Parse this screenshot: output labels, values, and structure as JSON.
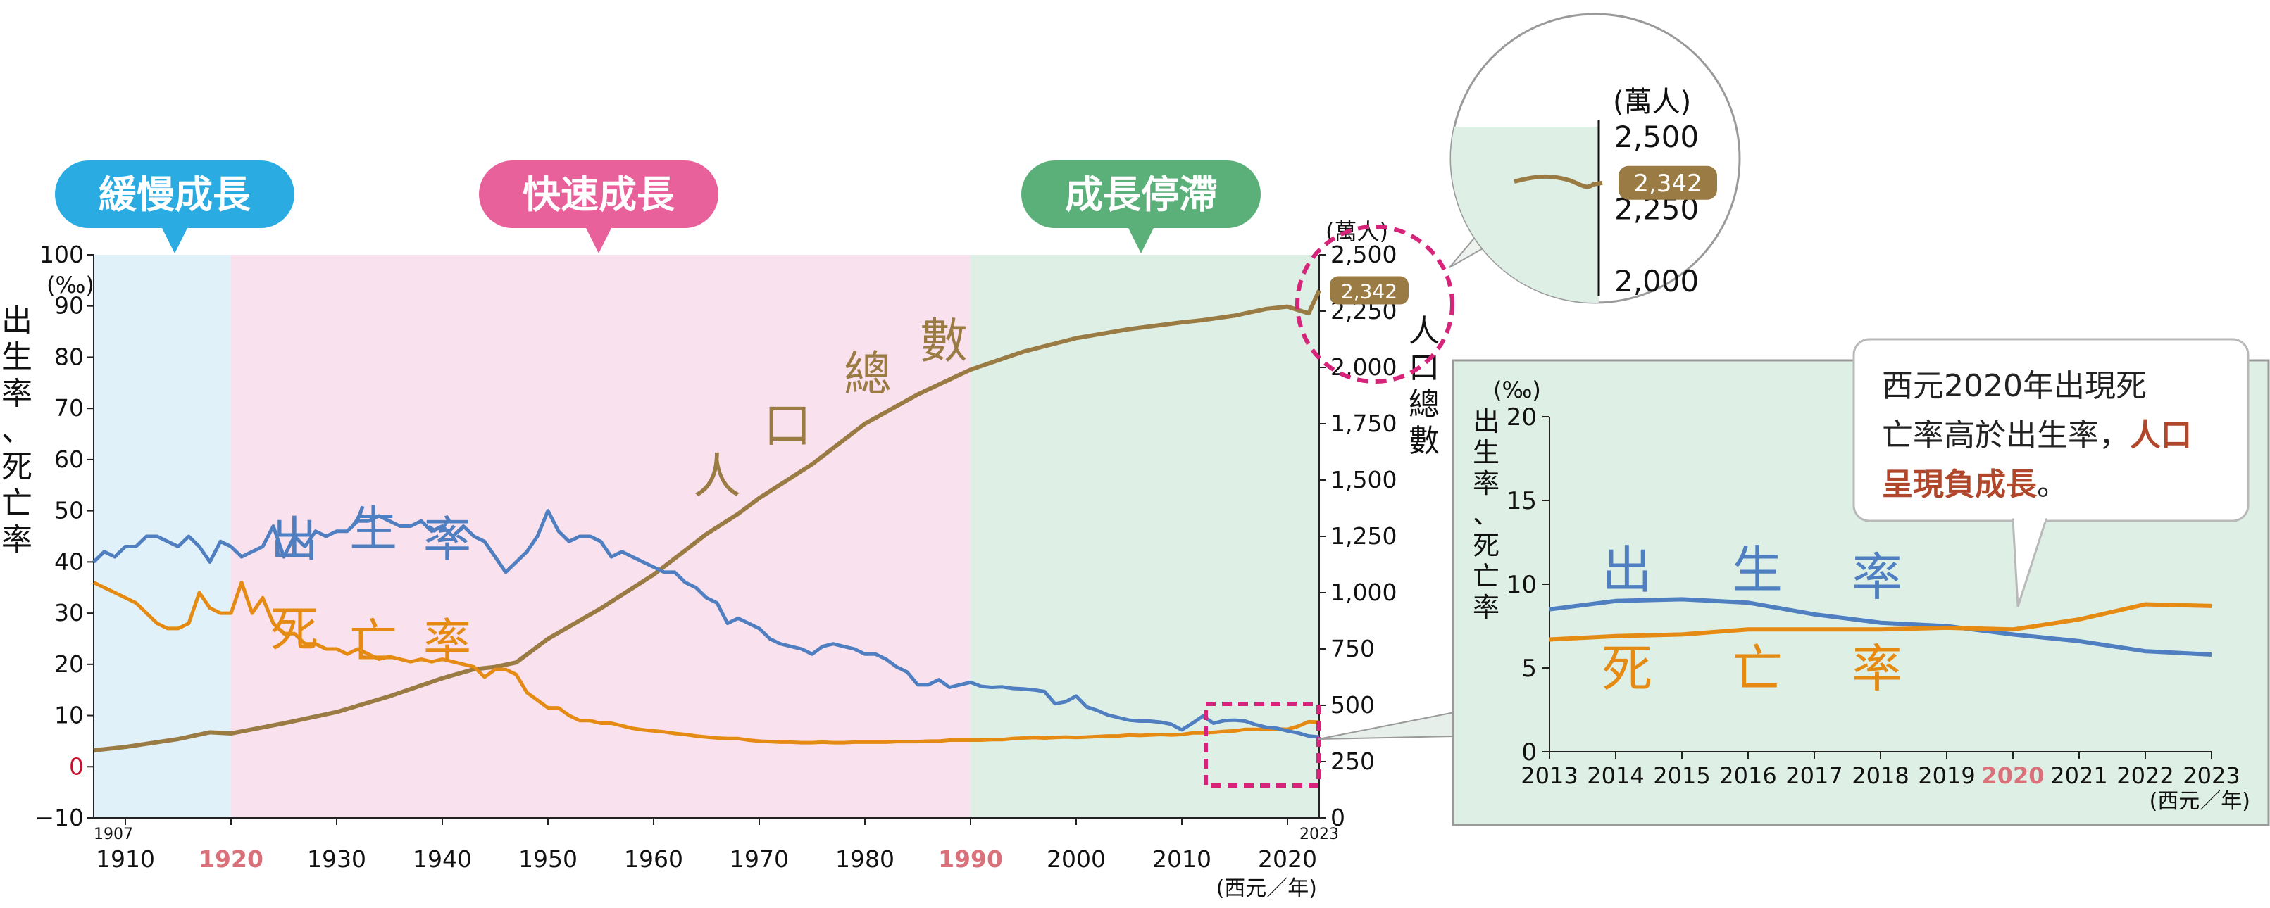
{
  "chart_data": [
    {
      "type": "line",
      "x_unit": "(西元／年)",
      "left_axis": {
        "unit": "(‰)",
        "label": "出生率、死亡率",
        "ticks": [
          -10,
          0,
          10,
          20,
          30,
          40,
          50,
          60,
          70,
          80,
          90,
          100
        ],
        "ylim": [
          -10,
          100
        ]
      },
      "right_axis": {
        "unit": "(萬人)",
        "label": "人口總數",
        "ticks": [
          "0",
          "250",
          "500",
          "750",
          "1,000",
          "1,250",
          "1,500",
          "1,750",
          "2,000",
          "2,250",
          "2,500"
        ],
        "ylim": [
          0,
          2500
        ]
      },
      "x_ticks": [
        "1910",
        "1920",
        "1930",
        "1940",
        "1950",
        "1960",
        "1970",
        "1980",
        "1990",
        "2000",
        "2010",
        "2020"
      ],
      "x_start_label": "1907",
      "x_end_label": "2023",
      "xlim": [
        1907,
        2023
      ],
      "phases": [
        {
          "label": "緩慢成長",
          "from": 1907,
          "to": 1920,
          "band": "#e1f1fa",
          "badge": "#2aace2"
        },
        {
          "label": "快速成長",
          "from": 1920,
          "to": 1990,
          "band": "#f9e1ee",
          "badge": "#e8619b"
        },
        {
          "label": "成長停滯",
          "from": 1990,
          "to": 2023,
          "band": "#deefe6",
          "badge": "#5bb07a"
        }
      ],
      "series": [
        {
          "name": "出生率",
          "color": "#4f7fc0",
          "label_chars": [
            "出",
            "生",
            "率"
          ],
          "x": [
            1907,
            1908,
            1909,
            1910,
            1911,
            1912,
            1913,
            1914,
            1915,
            1916,
            1917,
            1918,
            1919,
            1920,
            1921,
            1922,
            1923,
            1924,
            1925,
            1926,
            1927,
            1928,
            1929,
            1930,
            1931,
            1932,
            1933,
            1934,
            1935,
            1936,
            1937,
            1938,
            1939,
            1940,
            1941,
            1942,
            1943,
            1944,
            1945,
            1946,
            1947,
            1948,
            1949,
            1950,
            1951,
            1952,
            1953,
            1954,
            1955,
            1956,
            1957,
            1958,
            1959,
            1960,
            1961,
            1962,
            1963,
            1964,
            1965,
            1966,
            1967,
            1968,
            1969,
            1970,
            1971,
            1972,
            1973,
            1974,
            1975,
            1976,
            1977,
            1978,
            1979,
            1980,
            1981,
            1982,
            1983,
            1984,
            1985,
            1986,
            1987,
            1988,
            1989,
            1990,
            1991,
            1992,
            1993,
            1994,
            1995,
            1996,
            1997,
            1998,
            1999,
            2000,
            2001,
            2002,
            2003,
            2004,
            2005,
            2006,
            2007,
            2008,
            2009,
            2010,
            2011,
            2012,
            2013,
            2014,
            2015,
            2016,
            2017,
            2018,
            2019,
            2020,
            2021,
            2022,
            2023
          ],
          "y": [
            40,
            42,
            41,
            43,
            43,
            45,
            45,
            44,
            43,
            45,
            43,
            40,
            44,
            43,
            41,
            42,
            43,
            47,
            41,
            45,
            43,
            46,
            45,
            46,
            46,
            48,
            48,
            49,
            48,
            47,
            47,
            48,
            46,
            47,
            45,
            47,
            45,
            44,
            41,
            38,
            40,
            42,
            45,
            50,
            46,
            44,
            45,
            45,
            44,
            41,
            42,
            41,
            40,
            39,
            38,
            38,
            36,
            35,
            33,
            32,
            28,
            29,
            28,
            27,
            25,
            24,
            23.5,
            23,
            22,
            23.5,
            24,
            23.5,
            23,
            22,
            22,
            21,
            19.5,
            18.5,
            16,
            16,
            17,
            15.5,
            16,
            16.5,
            15.7,
            15.5,
            15.6,
            15.3,
            15.2,
            15,
            14.7,
            12.3,
            12.7,
            13.8,
            11.7,
            11,
            10.1,
            9.6,
            9.1,
            8.9,
            8.9,
            8.7,
            8.3,
            7.2,
            8.5,
            9.9,
            8.5,
            9.0,
            9.1,
            8.9,
            8.2,
            7.7,
            7.5,
            7.0,
            6.6,
            6.0,
            5.8
          ]
        },
        {
          "name": "死亡率",
          "color": "#e58a12",
          "label_chars": [
            "死",
            "亡",
            "率"
          ],
          "x": [
            1907,
            1908,
            1909,
            1910,
            1911,
            1912,
            1913,
            1914,
            1915,
            1916,
            1917,
            1918,
            1919,
            1920,
            1921,
            1922,
            1923,
            1924,
            1925,
            1926,
            1927,
            1928,
            1929,
            1930,
            1931,
            1932,
            1933,
            1934,
            1935,
            1936,
            1937,
            1938,
            1939,
            1940,
            1941,
            1942,
            1943,
            1944,
            1945,
            1946,
            1947,
            1948,
            1949,
            1950,
            1951,
            1952,
            1953,
            1954,
            1955,
            1956,
            1957,
            1958,
            1959,
            1960,
            1961,
            1962,
            1963,
            1964,
            1965,
            1966,
            1967,
            1968,
            1969,
            1970,
            1971,
            1972,
            1973,
            1974,
            1975,
            1976,
            1977,
            1978,
            1979,
            1980,
            1981,
            1982,
            1983,
            1984,
            1985,
            1986,
            1987,
            1988,
            1989,
            1990,
            1991,
            1992,
            1993,
            1994,
            1995,
            1996,
            1997,
            1998,
            1999,
            2000,
            2001,
            2002,
            2003,
            2004,
            2005,
            2006,
            2007,
            2008,
            2009,
            2010,
            2011,
            2012,
            2013,
            2014,
            2015,
            2016,
            2017,
            2018,
            2019,
            2020,
            2021,
            2022,
            2023
          ],
          "y": [
            36,
            35,
            34,
            33,
            32,
            30,
            28,
            27,
            27,
            28,
            34,
            31,
            30,
            30,
            36,
            30,
            33,
            28,
            26,
            26,
            24,
            24,
            23,
            23,
            22,
            23,
            22,
            21,
            21.5,
            21,
            20.5,
            21,
            20.5,
            21,
            20.5,
            20,
            19.5,
            17.5,
            19,
            19,
            18,
            14.5,
            13,
            11.5,
            11.5,
            10,
            9,
            9,
            8.5,
            8.5,
            8,
            7.5,
            7.2,
            7,
            6.8,
            6.5,
            6.3,
            6,
            5.8,
            5.6,
            5.5,
            5.5,
            5.2,
            5,
            4.9,
            4.8,
            4.8,
            4.7,
            4.7,
            4.8,
            4.7,
            4.7,
            4.8,
            4.8,
            4.8,
            4.8,
            4.9,
            4.9,
            4.9,
            5,
            5,
            5.2,
            5.2,
            5.2,
            5.2,
            5.3,
            5.3,
            5.5,
            5.6,
            5.7,
            5.6,
            5.7,
            5.8,
            5.7,
            5.8,
            5.9,
            6.0,
            6.0,
            6.2,
            6.1,
            6.2,
            6.3,
            6.2,
            6.3,
            6.6,
            6.6,
            6.7,
            6.9,
            7.0,
            7.3,
            7.3,
            7.3,
            7.4,
            7.3,
            7.9,
            8.8,
            8.7
          ]
        }
      ],
      "population_series": {
        "name": "人口總數",
        "color": "#9a7b43",
        "axis": "right",
        "label_chars": [
          "人",
          "口",
          "總",
          "數"
        ],
        "x": [
          1907,
          1910,
          1915,
          1918,
          1920,
          1925,
          1930,
          1935,
          1940,
          1943,
          1945,
          1947,
          1950,
          1955,
          1960,
          1965,
          1968,
          1970,
          1975,
          1980,
          1985,
          1990,
          1995,
          2000,
          2005,
          2010,
          2012,
          2015,
          2018,
          2020,
          2021,
          2022,
          2023
        ],
        "y": [
          300,
          315,
          350,
          380,
          375,
          420,
          470,
          540,
          620,
          660,
          670,
          690,
          795,
          930,
          1080,
          1260,
          1350,
          1420,
          1570,
          1750,
          1880,
          1990,
          2070,
          2130,
          2170,
          2200,
          2210,
          2230,
          2260,
          2270,
          2255,
          2240,
          2342
        ]
      },
      "callout": {
        "value": "2,342",
        "unit": "(萬人)",
        "zoom_ticks": [
          "2,500",
          "2,250",
          "2,000"
        ]
      }
    },
    {
      "type": "line",
      "unit": "(‰)",
      "axis_label": "出生率、死亡率",
      "x_unit": "(西元／年)",
      "categories": [
        "2013",
        "2014",
        "2015",
        "2016",
        "2017",
        "2018",
        "2019",
        "2020",
        "2021",
        "2022",
        "2023"
      ],
      "highlight_category": "2020",
      "y_ticks": [
        0,
        5,
        10,
        15,
        20
      ],
      "ylim": [
        0,
        20
      ],
      "series": [
        {
          "name": "出生率",
          "color": "#4f7fc0",
          "label_chars": [
            "出",
            "生",
            "率"
          ],
          "values": [
            8.5,
            9.0,
            9.1,
            8.9,
            8.2,
            7.7,
            7.5,
            7.0,
            6.6,
            6.0,
            5.8
          ]
        },
        {
          "name": "死亡率",
          "color": "#e58a12",
          "label_chars": [
            "死",
            "亡",
            "率"
          ],
          "values": [
            6.7,
            6.9,
            7.0,
            7.3,
            7.3,
            7.3,
            7.4,
            7.3,
            7.9,
            8.8,
            8.7
          ]
        }
      ],
      "note": {
        "text_normal": "西元2020年出現死亡率高於出生率，",
        "text_emphasis": "人口呈現負成長",
        "text_end": "。"
      }
    }
  ]
}
